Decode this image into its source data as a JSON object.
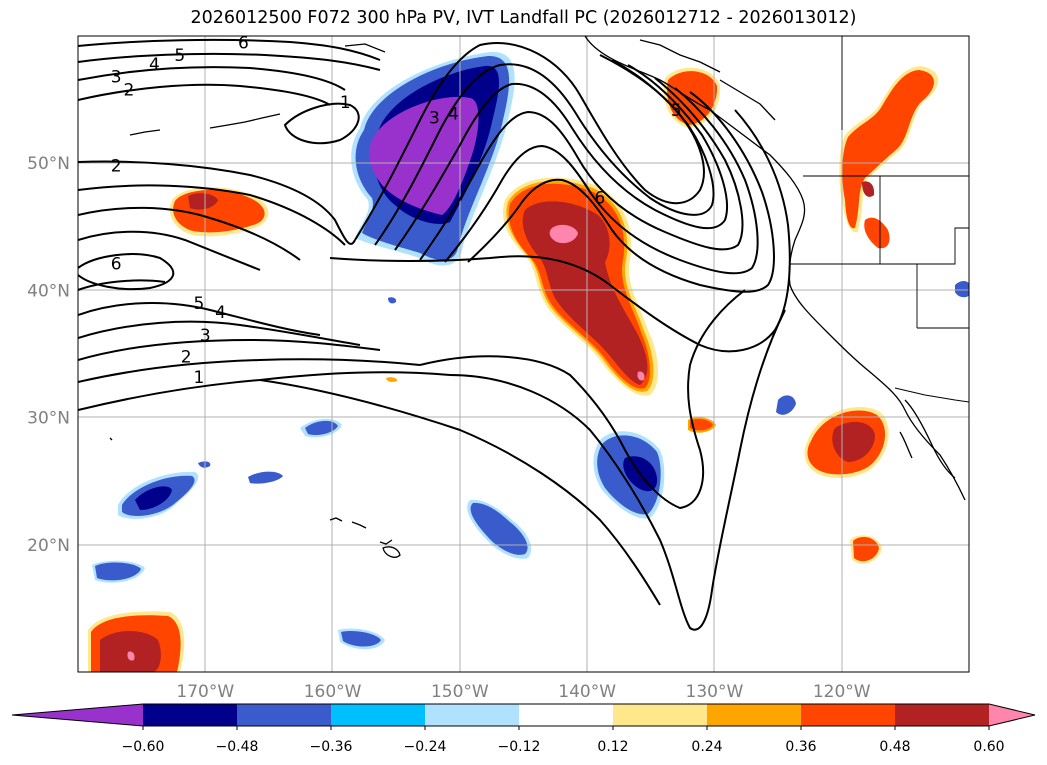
{
  "title": "2026012500 F072 300 hPa PV, IVT Landfall PC (2026012712 - 2026013012)",
  "map": {
    "projection": "PlateCarree",
    "lon_range": [
      -180,
      -110
    ],
    "lat_range": [
      10,
      60
    ],
    "grid": true,
    "lat_ticks": [
      {
        "value": 50,
        "label": "50°N"
      },
      {
        "value": 40,
        "label": "40°N"
      },
      {
        "value": 30,
        "label": "30°N"
      },
      {
        "value": 20,
        "label": "20°N"
      }
    ],
    "lon_ticks": [
      {
        "value": -170,
        "label": "170°W"
      },
      {
        "value": -160,
        "label": "160°W"
      },
      {
        "value": -150,
        "label": "150°W"
      },
      {
        "value": -140,
        "label": "140°W"
      },
      {
        "value": -130,
        "label": "130°W"
      },
      {
        "value": -120,
        "label": "120°W"
      }
    ],
    "tick_color": "#808080",
    "contour_labels": [
      {
        "text": "6",
        "lon": -167,
        "lat": 59.5
      },
      {
        "text": "5",
        "lon": -172,
        "lat": 58.5
      },
      {
        "text": "4",
        "lon": -174,
        "lat": 57.8
      },
      {
        "text": "3",
        "lon": -177,
        "lat": 56.8
      },
      {
        "text": "2",
        "lon": -176,
        "lat": 55.8
      },
      {
        "text": "1",
        "lon": -159,
        "lat": 54.8
      },
      {
        "text": "3",
        "lon": -152,
        "lat": 53.6
      },
      {
        "text": "4",
        "lon": -150.5,
        "lat": 53.9
      },
      {
        "text": "5",
        "lon": -133,
        "lat": 54.2
      },
      {
        "text": "2",
        "lon": -177,
        "lat": 49.8
      },
      {
        "text": "6",
        "lon": -139,
        "lat": 47.3
      },
      {
        "text": "6",
        "lon": -177,
        "lat": 42.1
      },
      {
        "text": "5",
        "lon": -170.5,
        "lat": 39
      },
      {
        "text": "4",
        "lon": -168.8,
        "lat": 38.3
      },
      {
        "text": "3",
        "lon": -170,
        "lat": 36.5
      },
      {
        "text": "2",
        "lon": -171.5,
        "lat": 34.8
      },
      {
        "text": "1",
        "lon": -170.5,
        "lat": 33.2
      }
    ]
  },
  "colorbar": {
    "colors": [
      "#9932cc",
      "#00008b",
      "#3a5bcc",
      "#00bfff",
      "#b0e2ff",
      "#ffffff",
      "#ffe88c",
      "#ffa500",
      "#ff4500",
      "#b22222",
      "#ff85ad"
    ],
    "tick_labels": [
      "−0.60",
      "−0.48",
      "−0.36",
      "−0.24",
      "−0.12",
      "0.12",
      "0.24",
      "0.36",
      "0.48",
      "0.60"
    ]
  }
}
